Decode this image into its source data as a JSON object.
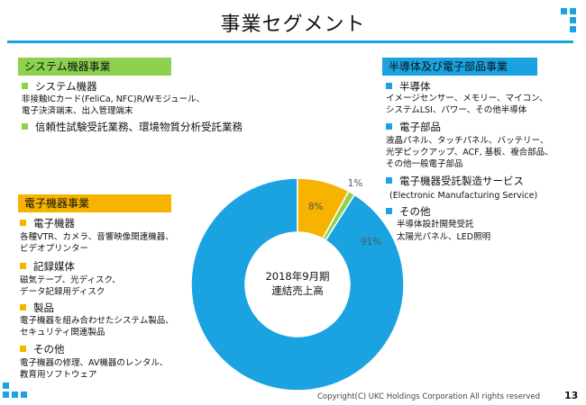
{
  "page": {
    "title": "事業セグメント",
    "footer": "Copyright(C) UKC Holdings Corporation All rights reserved",
    "page_number": "13"
  },
  "colors": {
    "accent": "#1aa3e0",
    "green": "#8cd24f",
    "orange": "#f6b300",
    "blue": "#1aa3e0"
  },
  "segments": {
    "system": {
      "heading": "システム機器事業",
      "items": [
        {
          "label": "システム機器",
          "desc": [
            "非接触ICカード(FeliCa, NFC)R/Wモジュール、",
            "電子決済端末、出入管理端末"
          ]
        },
        {
          "label": "信頼性試験受託業務、環境物質分析受託業務",
          "desc": []
        }
      ]
    },
    "semiconductor": {
      "heading": "半導体及び電子部品事業",
      "items": [
        {
          "label": "半導体",
          "desc": [
            "イメージセンサー、メモリー、マイコン、",
            "システムLSI、パワー、その他半導体"
          ]
        },
        {
          "label": "電子部品",
          "desc": [
            "液晶パネル、タッチパネル、バッテリー、",
            "光学ピックアップ、ACF, 基板、複合部品、",
            "その他一般電子部品"
          ]
        },
        {
          "label": "電子機器受託製造サービス",
          "desc": [
            "(Electronic Manufacturing Service)"
          ]
        },
        {
          "label": "その他",
          "desc": [
            "半導体設計開発受託",
            "太陽光パネル、LED照明"
          ]
        }
      ]
    },
    "electronic": {
      "heading": "電子機器事業",
      "items": [
        {
          "label": "電子機器",
          "desc": [
            "各種VTR、カメラ、音響映像関連機器、",
            "ビデオプリンター"
          ]
        },
        {
          "label": "記録媒体",
          "desc": [
            "磁気テープ、光ディスク、",
            "データ記録用ディスク"
          ]
        },
        {
          "label": "製品",
          "desc": [
            "電子機器を組み合わせたシステム製品、",
            "セキュリティ関連製品"
          ]
        },
        {
          "label": "その他",
          "desc": [
            "電子機器の修理、AV機器のレンタル、",
            "教育用ソフトウェア"
          ]
        }
      ]
    }
  },
  "chart_data": {
    "type": "pie",
    "style": "donut",
    "title": "2018年9月期 連結売上高",
    "center_label": [
      "2018年9月期",
      "連結売上高"
    ],
    "categories": [
      "半導体及び電子部品事業",
      "電子機器事業",
      "システム機器事業"
    ],
    "values": [
      91,
      8,
      1
    ],
    "labels": [
      "91%",
      "8%",
      "1%"
    ],
    "colors": [
      "#1aa3e0",
      "#f6b300",
      "#8cd24f"
    ]
  }
}
